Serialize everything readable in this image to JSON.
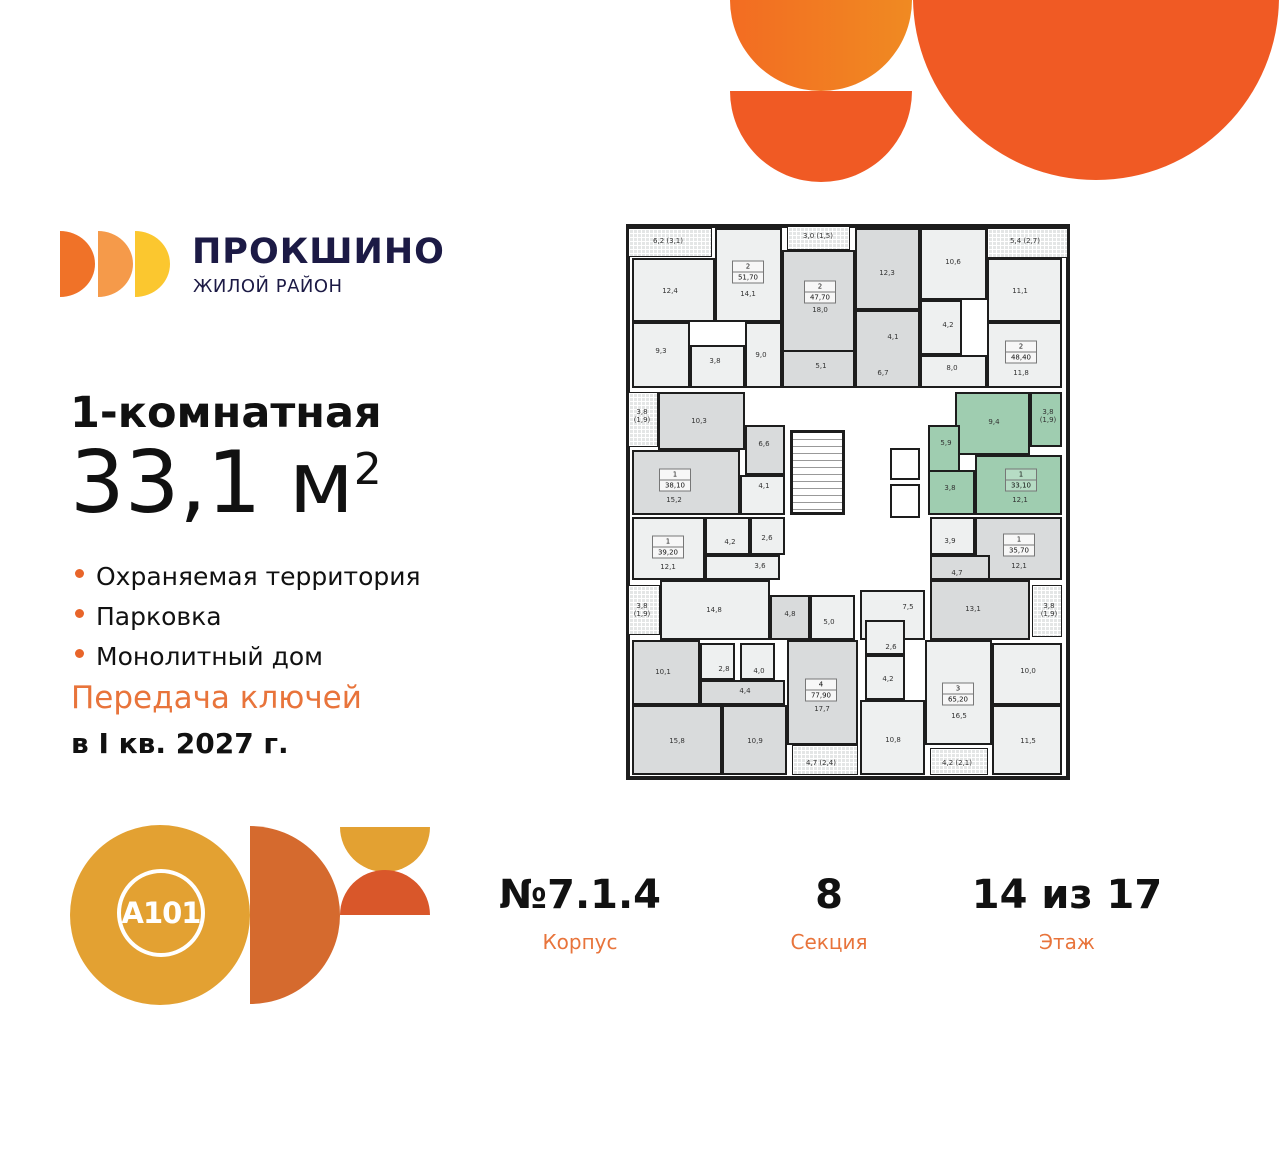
{
  "brand": {
    "name": "ПРОКШИНО",
    "subtitle": "ЖИЛОЙ РАЙОН",
    "colors": [
      "#f07228",
      "#f59a4a",
      "#fbc72f"
    ]
  },
  "apartment": {
    "type": "1-комнатная",
    "area_value": "33,1 м",
    "area_sup": "2"
  },
  "features": [
    "Охраняемая территория",
    "Парковка",
    "Монолитный дом"
  ],
  "handover": {
    "label": "Передача ключей",
    "date": "в I кв. 2027 г."
  },
  "developer_logo": "A101",
  "stats": [
    {
      "value": "№7.1.4",
      "label": "Корпус"
    },
    {
      "value": "8",
      "label": "Секция"
    },
    {
      "value": "14 из 17",
      "label": "Этаж"
    }
  ],
  "colors": {
    "accent": "#e8743b",
    "highlight": "#9fcdb0",
    "deco_orange": "#f05a24"
  },
  "floorplan": {
    "rooms": [
      "6,2 (3,1)",
      "12,4",
      "14,1",
      "9,3",
      "3,8",
      "9,0",
      "3,0 (1,5)",
      "18,0",
      "5,1",
      "12,3",
      "4,1",
      "6,7",
      "10,6",
      "4,2",
      "8,0",
      "5,4 (2,7)",
      "11,1",
      "11,8",
      "3,8\n(1,9)",
      "10,3",
      "6,6",
      "15,2",
      "4,1",
      "9,4",
      "3,8\n(1,9)",
      "5,9",
      "3,8",
      "12,1",
      "12,1",
      "4,2",
      "2,6",
      "3,6",
      "3,8\n(1,9)",
      "14,8",
      "4,8",
      "5,0",
      "10,1",
      "2,8",
      "4,0",
      "4,4",
      "15,8",
      "10,9",
      "17,7",
      "4,7 (2,4)",
      "7,5",
      "2,6",
      "4,2",
      "10,8",
      "3,9",
      "12,1",
      "4,7",
      "13,1",
      "3,8\n(1,9)",
      "16,5",
      "10,0",
      "11,5",
      "4,2 (2,1)"
    ],
    "apartments": [
      {
        "rooms": "2",
        "area": "51,70"
      },
      {
        "rooms": "2",
        "area": "47,70"
      },
      {
        "rooms": "2",
        "area": "48,40"
      },
      {
        "rooms": "1",
        "area": "38,10"
      },
      {
        "rooms": "1",
        "area": "33,10",
        "selected": true
      },
      {
        "rooms": "1",
        "area": "39,20"
      },
      {
        "rooms": "1",
        "area": "35,70"
      },
      {
        "rooms": "4",
        "area": "77,90"
      },
      {
        "rooms": "3",
        "area": "65,20"
      }
    ]
  }
}
